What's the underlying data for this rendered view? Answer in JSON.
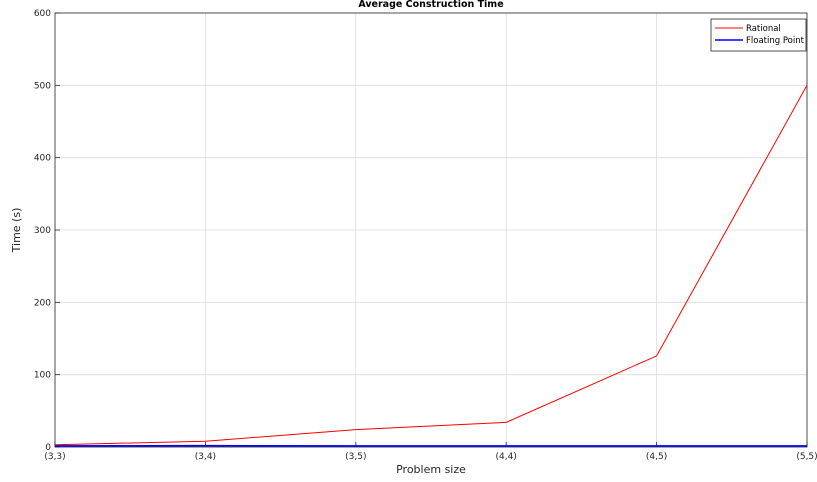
{
  "chart_data": {
    "type": "line",
    "title": "Average Construction Time",
    "xlabel": "Problem size",
    "ylabel": "Time (s)",
    "categories": [
      "(3,3)",
      "(3,4)",
      "(3,5)",
      "(4,4)",
      "(4,5)",
      "(5,5)"
    ],
    "ylim": [
      0,
      600
    ],
    "yticks": [
      0,
      100,
      200,
      300,
      400,
      500,
      600
    ],
    "grid": true,
    "legend_position": "top-right",
    "series": [
      {
        "name": "Rational",
        "color": "#ff0000",
        "values": [
          3,
          8,
          24,
          34,
          126,
          500
        ]
      },
      {
        "name": "Floating Point",
        "color": "#0000ff",
        "values": [
          1.5,
          1.8,
          1.5,
          1.5,
          1.5,
          1.5
        ]
      }
    ]
  }
}
